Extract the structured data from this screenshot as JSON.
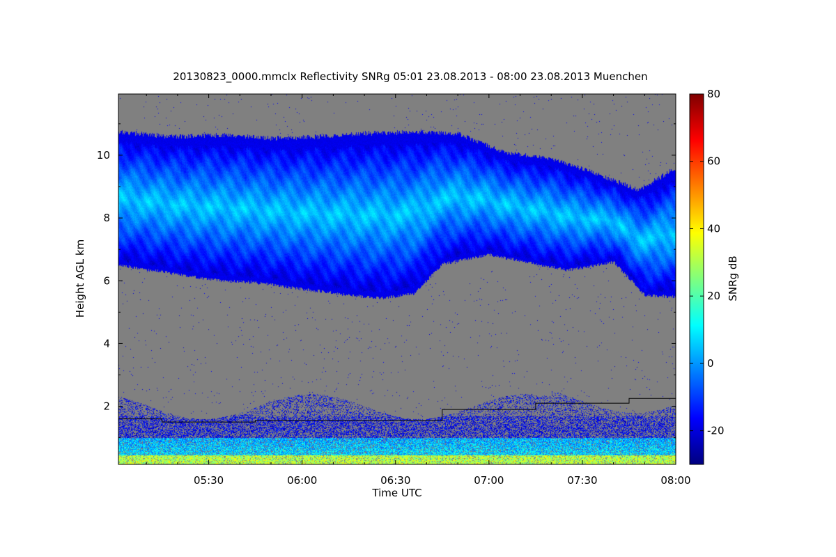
{
  "chart_data": {
    "type": "heatmap",
    "title": "20130823_0000.mmclx Reflectivity SNRg   05:01 23.08.2013 - 08:00 23.08.2013 Muenchen",
    "xlabel": "Time UTC",
    "ylabel": "Height AGL km",
    "colorbar_label": "SNRg dB",
    "x_ticks": [
      "05:30",
      "06:00",
      "06:30",
      "07:00",
      "07:30",
      "08:00"
    ],
    "x_tick_minutes": [
      330,
      360,
      390,
      420,
      450,
      480
    ],
    "xlim_minutes": [
      301,
      480
    ],
    "y_ticks": [
      "2",
      "4",
      "6",
      "8",
      "10"
    ],
    "y_tick_values": [
      2,
      4,
      6,
      8,
      10
    ],
    "ylim": [
      0.15,
      11.95
    ],
    "colorbar_ticks": [
      "-20",
      "0",
      "20",
      "40",
      "60",
      "80"
    ],
    "colorbar_tick_values": [
      -20,
      0,
      20,
      40,
      60,
      80
    ],
    "colorbar_range": [
      -30,
      80
    ],
    "no_signal_color": "#808080",
    "colormap": [
      "#00007f",
      "#0000ff",
      "#007fff",
      "#00ffff",
      "#7fff7f",
      "#ffff00",
      "#ff7f00",
      "#ff0000",
      "#7f0000"
    ],
    "cloud_layer": {
      "description_values": "upper cirrus layer",
      "top_km": [
        [
          301,
          10.75
        ],
        [
          318,
          10.6
        ],
        [
          335,
          10.65
        ],
        [
          350,
          10.55
        ],
        [
          365,
          10.6
        ],
        [
          380,
          10.7
        ],
        [
          395,
          10.75
        ],
        [
          410,
          10.7
        ],
        [
          425,
          10.1
        ],
        [
          440,
          9.9
        ],
        [
          455,
          9.4
        ],
        [
          468,
          8.9
        ],
        [
          480,
          9.6
        ]
      ],
      "base_km": [
        [
          301,
          6.5
        ],
        [
          315,
          6.3
        ],
        [
          330,
          6.05
        ],
        [
          345,
          5.95
        ],
        [
          360,
          5.75
        ],
        [
          375,
          5.55
        ],
        [
          385,
          5.45
        ],
        [
          396,
          5.6
        ],
        [
          405,
          6.55
        ],
        [
          420,
          6.85
        ],
        [
          432,
          6.6
        ],
        [
          445,
          6.35
        ],
        [
          460,
          6.6
        ],
        [
          470,
          5.55
        ],
        [
          480,
          5.5
        ]
      ],
      "peak_snr_db": 12
    },
    "boundary_layer_line_km": [
      [
        301,
        1.6
      ],
      [
        315,
        1.6
      ],
      [
        315,
        1.5
      ],
      [
        345,
        1.5
      ],
      [
        345,
        1.55
      ],
      [
        405,
        1.55
      ],
      [
        405,
        1.9
      ],
      [
        435,
        1.9
      ],
      [
        435,
        2.1
      ],
      [
        465,
        2.1
      ],
      [
        465,
        2.25
      ],
      [
        480,
        2.25
      ]
    ]
  }
}
